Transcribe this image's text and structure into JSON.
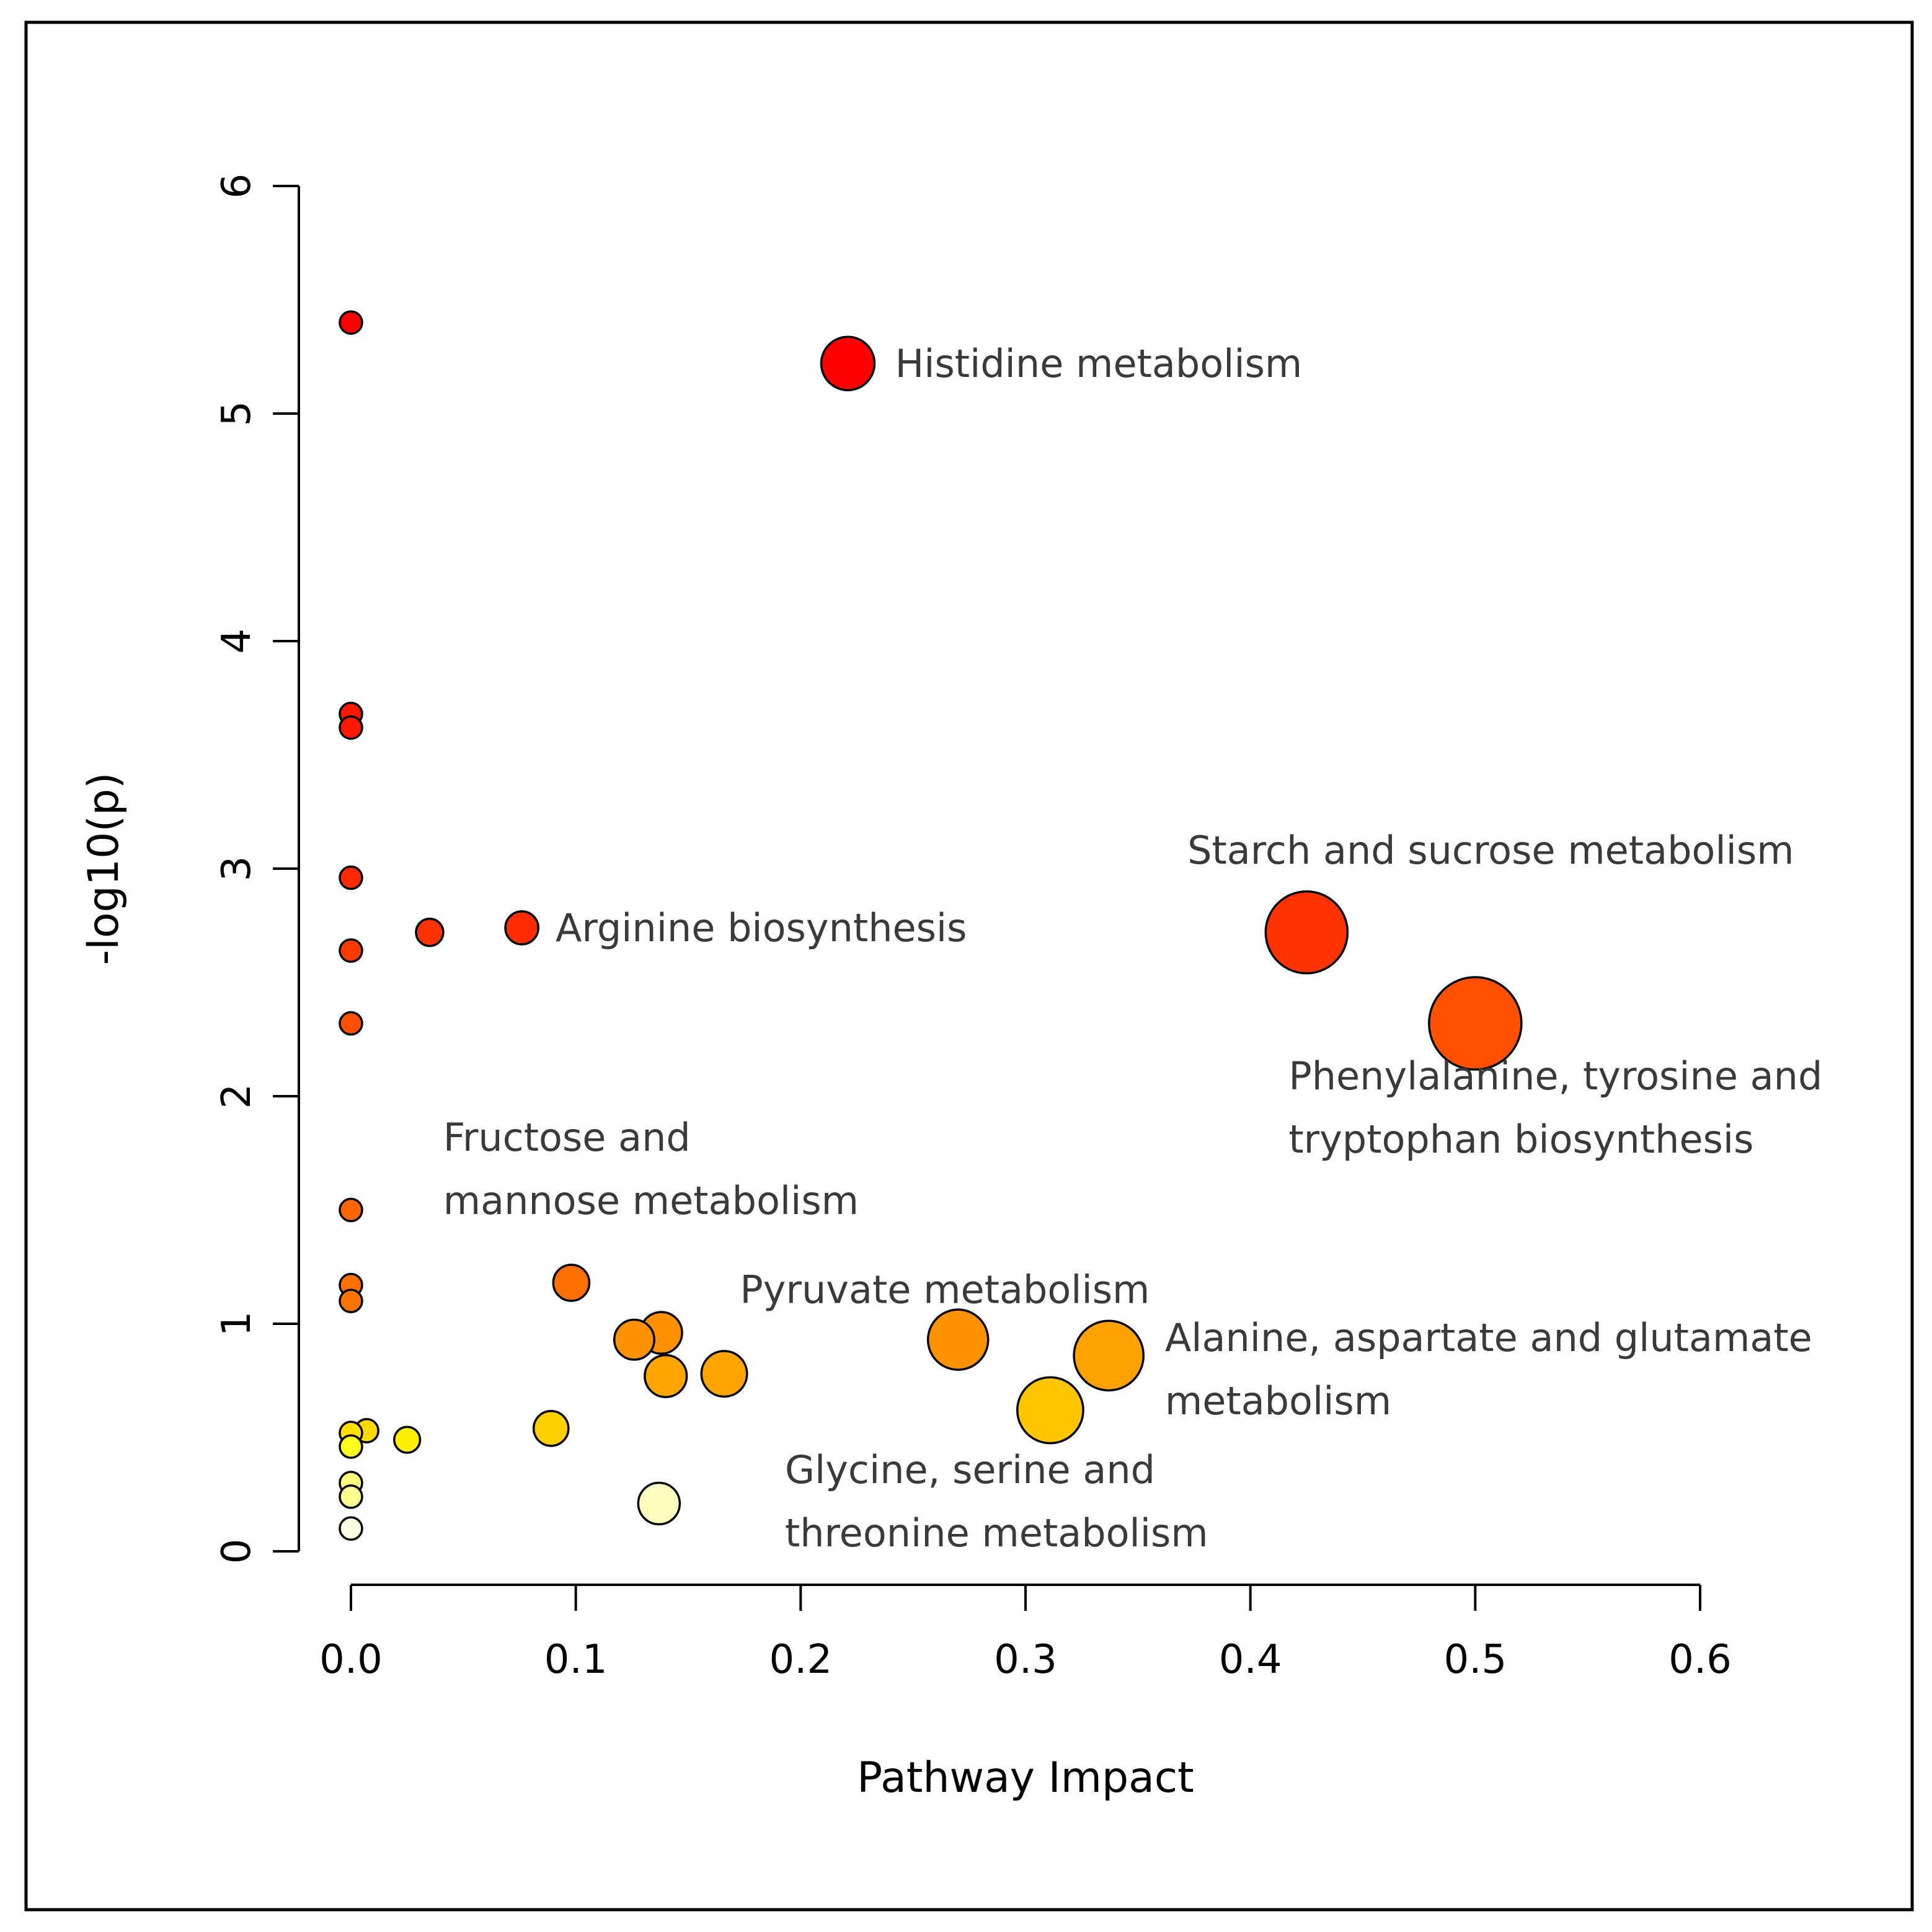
{
  "chart_data": {
    "type": "scatter",
    "title": "",
    "xlabel": "Pathway Impact",
    "ylabel": "-log10(p)",
    "xlim": [
      0,
      0.6
    ],
    "ylim": [
      0,
      6
    ],
    "x_ticks": [
      "0.0",
      "0.1",
      "0.2",
      "0.3",
      "0.4",
      "0.5",
      "0.6"
    ],
    "y_ticks": [
      "0",
      "1",
      "2",
      "3",
      "4",
      "5",
      "6"
    ],
    "grid": false,
    "legend": "none",
    "size_encodes": "Pathway Impact",
    "color_encodes": "-log10(p)",
    "color_scale": "white-yellow-orange-red",
    "points": [
      {
        "x": 0.0,
        "y": 5.4,
        "color": "#ff0000"
      },
      {
        "x": 0.221,
        "y": 5.22,
        "color": "#ff0000"
      },
      {
        "x": 0.0,
        "y": 3.68,
        "color": "#ff1800"
      },
      {
        "x": 0.0,
        "y": 3.62,
        "color": "#ff1800"
      },
      {
        "x": 0.0,
        "y": 2.96,
        "color": "#ff2a00"
      },
      {
        "x": 0.076,
        "y": 2.74,
        "color": "#ff2c00"
      },
      {
        "x": 0.035,
        "y": 2.72,
        "color": "#ff3300"
      },
      {
        "x": 0.425,
        "y": 2.72,
        "color": "#ff3300"
      },
      {
        "x": 0.0,
        "y": 2.64,
        "color": "#ff3a00"
      },
      {
        "x": 0.0,
        "y": 2.32,
        "color": "#ff5000"
      },
      {
        "x": 0.5,
        "y": 2.32,
        "color": "#ff5000"
      },
      {
        "x": 0.0,
        "y": 1.5,
        "color": "#ff6600"
      },
      {
        "x": 0.0,
        "y": 1.17,
        "color": "#ff7000"
      },
      {
        "x": 0.098,
        "y": 1.18,
        "color": "#ff7000"
      },
      {
        "x": 0.0,
        "y": 1.1,
        "color": "#ff7400"
      },
      {
        "x": 0.138,
        "y": 0.96,
        "color": "#ff9000"
      },
      {
        "x": 0.27,
        "y": 0.93,
        "color": "#ff9200"
      },
      {
        "x": 0.126,
        "y": 0.93,
        "color": "#ff9200"
      },
      {
        "x": 0.337,
        "y": 0.86,
        "color": "#ffa100"
      },
      {
        "x": 0.166,
        "y": 0.78,
        "color": "#ffa400"
      },
      {
        "x": 0.14,
        "y": 0.77,
        "color": "#ffa400"
      },
      {
        "x": 0.311,
        "y": 0.62,
        "color": "#ffc500"
      },
      {
        "x": 0.089,
        "y": 0.54,
        "color": "#ffd000"
      },
      {
        "x": 0.007,
        "y": 0.53,
        "color": "#ffda00"
      },
      {
        "x": 0.0,
        "y": 0.52,
        "color": "#ffe000"
      },
      {
        "x": 0.025,
        "y": 0.49,
        "color": "#ffee00"
      },
      {
        "x": 0.0,
        "y": 0.46,
        "color": "#ffff20"
      },
      {
        "x": 0.0,
        "y": 0.3,
        "color": "#ffff80"
      },
      {
        "x": 0.0,
        "y": 0.24,
        "color": "#ffff90"
      },
      {
        "x": 0.137,
        "y": 0.21,
        "color": "#ffffbf"
      },
      {
        "x": 0.0,
        "y": 0.1,
        "color": "#ffffe8"
      }
    ],
    "annotations": [
      {
        "lines": [
          "Histidine metabolism"
        ],
        "x": 0.242,
        "y": 5.22,
        "anchor": "start"
      },
      {
        "lines": [
          "Arginine biosynthesis"
        ],
        "x": 0.091,
        "y": 2.74,
        "anchor": "start"
      },
      {
        "lines": [
          "Starch and sucrose metabolism"
        ],
        "x": 0.372,
        "y": 3.08,
        "anchor": "start"
      },
      {
        "lines": [
          "Phenylalanine, tyrosine and",
          "tryptophan biosynthesis"
        ],
        "x": 0.417,
        "y": 1.95,
        "anchor": "start"
      },
      {
        "lines": [
          "Fructose and",
          "mannose metabolism"
        ],
        "x": 0.041,
        "y": 1.68,
        "anchor": "start"
      },
      {
        "lines": [
          "Pyruvate metabolism"
        ],
        "x": 0.173,
        "y": 1.15,
        "anchor": "start"
      },
      {
        "lines": [
          "Alanine, aspartate and glutamate",
          "metabolism"
        ],
        "x": 0.362,
        "y": 0.8,
        "anchor": "start"
      },
      {
        "lines": [
          "Glycine, serine and",
          "threonine metabolism"
        ],
        "x": 0.193,
        "y": 0.22,
        "anchor": "start"
      }
    ]
  }
}
